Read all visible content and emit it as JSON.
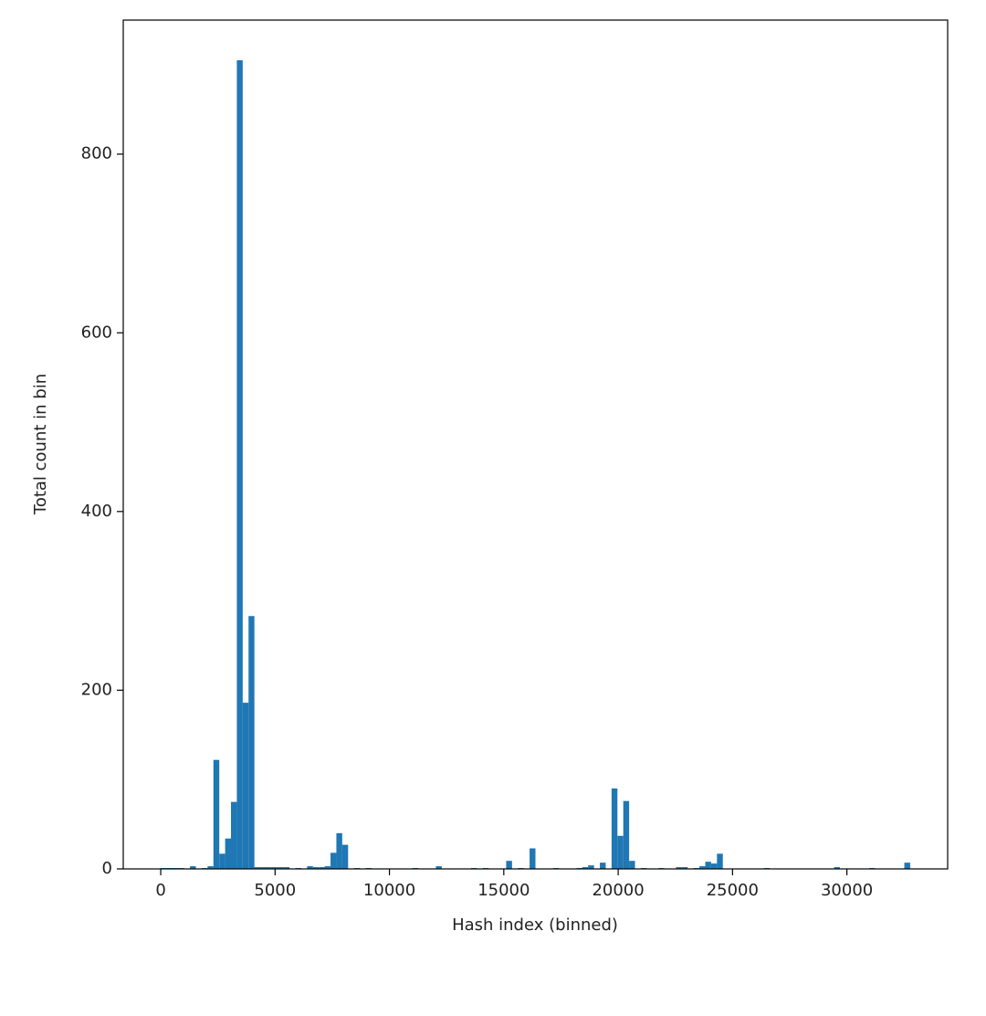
{
  "chart_data": {
    "type": "histogram",
    "xlabel": "Hash index (binned)",
    "ylabel": "Total count in bin",
    "color": "#1f77b4",
    "bins": [
      0,
      256,
      512,
      768,
      1024,
      1280,
      1536,
      1792,
      2048,
      2304,
      2560,
      2816,
      3072,
      3328,
      3584,
      3840,
      4096,
      4352,
      4608,
      4864,
      5120,
      5376,
      5632,
      5888,
      6144,
      6400,
      6656,
      6912,
      7168,
      7424,
      7680,
      7936,
      8192,
      8448,
      8704,
      8960,
      9216,
      9472,
      9728,
      9984,
      10240,
      10496,
      10752,
      11008,
      11264,
      11520,
      11776,
      12032,
      12288,
      12544,
      12800,
      13056,
      13312,
      13568,
      13824,
      14080,
      14336,
      14592,
      14848,
      15104,
      15360,
      15616,
      15872,
      16128,
      16384,
      16640,
      16896,
      17152,
      17408,
      17664,
      17920,
      18176,
      18432,
      18688,
      18944,
      19200,
      19456,
      19712,
      19968,
      20224,
      20480,
      20736,
      20992,
      21248,
      21504,
      21760,
      22016,
      22272,
      22528,
      22784,
      23040,
      23296,
      23552,
      23808,
      24064,
      24320,
      24576,
      24832,
      25088,
      25344,
      25600,
      25856,
      26112,
      26368,
      26624,
      26880,
      27136,
      27392,
      27648,
      27904,
      28160,
      28416,
      28672,
      28928,
      29184,
      29440,
      29696,
      29952,
      30208,
      30464,
      30720,
      30976,
      31232,
      31488,
      31744,
      32000,
      32256,
      32512,
      32768
    ],
    "values": [
      1,
      1,
      1,
      1,
      0,
      3,
      0,
      1,
      3,
      122,
      17,
      34,
      75,
      905,
      186,
      283,
      2,
      2,
      2,
      2,
      2,
      2,
      0,
      1,
      0,
      3,
      2,
      2,
      3,
      18,
      40,
      27,
      0,
      1,
      0,
      1,
      0,
      0,
      0,
      0,
      0,
      0,
      0,
      1,
      0,
      0,
      0,
      3,
      0,
      0,
      0,
      0,
      0,
      1,
      0,
      1,
      0,
      0,
      0,
      9,
      0,
      1,
      0,
      23,
      0,
      0,
      0,
      1,
      0,
      0,
      0,
      1,
      2,
      4,
      0,
      7,
      0,
      90,
      37,
      76,
      9,
      0,
      1,
      0,
      0,
      1,
      0,
      0,
      2,
      2,
      0,
      1,
      3,
      8,
      6,
      17,
      0,
      0,
      0,
      0,
      0,
      0,
      0,
      1,
      0,
      0,
      0,
      0,
      0,
      0,
      0,
      0,
      0,
      0,
      0,
      2,
      0,
      0,
      0,
      0,
      0,
      1,
      0,
      0,
      0,
      0,
      0,
      7
    ],
    "xlim": [
      -1638.4,
      34406.4
    ],
    "ylim": [
      0,
      950
    ],
    "xticks": [
      0,
      5000,
      10000,
      15000,
      20000,
      25000,
      30000
    ],
    "yticks": [
      0,
      200,
      400,
      600,
      800
    ]
  }
}
